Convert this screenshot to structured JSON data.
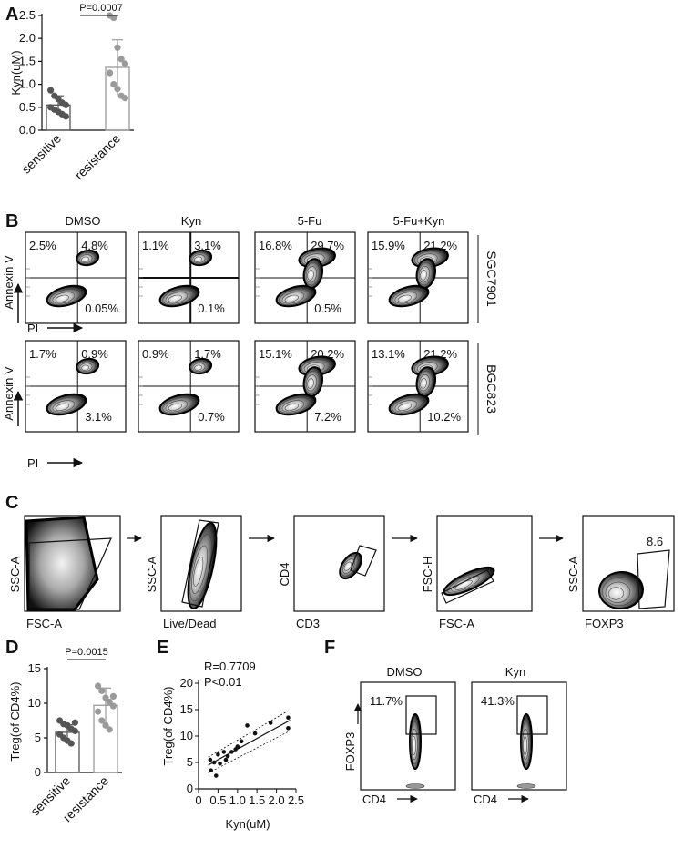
{
  "panel_labels": [
    "A",
    "B",
    "C",
    "D",
    "E",
    "F"
  ],
  "panelA": {
    "label": "A",
    "chart_data": {
      "type": "bar",
      "ylabel": "Kyn(uM)",
      "categories": [
        "sensitive",
        "resistance"
      ],
      "values": [
        0.55,
        1.37
      ],
      "errors": [
        0.2,
        0.6
      ],
      "points": [
        [
          0.87,
          0.75,
          0.68,
          0.6,
          0.55,
          0.5,
          0.45,
          0.4,
          0.35,
          0.3
        ],
        [
          2.5,
          2.45,
          1.8,
          1.55,
          1.45,
          1.25,
          1.0,
          0.9,
          0.75,
          0.7
        ]
      ],
      "ylim": [
        0,
        2.5
      ],
      "yticks": [
        "0.0",
        "0.5",
        "1.0",
        "1.5",
        "2.0",
        "2.5"
      ],
      "annotation": "P=0.0007",
      "colors": [
        "#555555",
        "#9a9a9a"
      ]
    }
  },
  "panelB": {
    "label": "B",
    "conditions": [
      "DMSO",
      "Kyn",
      "5-Fu",
      "5-Fu+Kyn"
    ],
    "rows": [
      {
        "cell_line": "SGC7901",
        "ylabel": "Annexin V",
        "xlabel": "PI",
        "ul": [
          "2.5%",
          "1.1%",
          "16.8%",
          "15.9%"
        ],
        "ur": [
          "4.8%",
          "3.1%",
          "29.7%",
          "21.2%"
        ],
        "lr": [
          "0.05%",
          "0.1%",
          "0.5%",
          ""
        ]
      },
      {
        "cell_line": "BGC823",
        "ylabel": "Annexin V",
        "xlabel": "PI",
        "ul": [
          "1.7%",
          "0.9%",
          "15.1%",
          "13.1%"
        ],
        "ur": [
          "0.9%",
          "1.7%",
          "20.2%",
          "21.2%"
        ],
        "lr": [
          "3.1%",
          "0.7%",
          "7.2%",
          "10.2%"
        ]
      }
    ]
  },
  "panelC": {
    "label": "C",
    "plots": [
      {
        "ylabel": "SSC-A",
        "xlabel": "FSC-A"
      },
      {
        "ylabel": "SSC-A",
        "xlabel": "Live/Dead"
      },
      {
        "ylabel": "CD4",
        "xlabel": "CD3"
      },
      {
        "ylabel": "FSC-H",
        "xlabel": "FSC-A"
      },
      {
        "ylabel": "SSC-A",
        "xlabel": "FOXP3",
        "gate_value": "8.6"
      }
    ]
  },
  "panelD": {
    "label": "D",
    "chart_data": {
      "type": "bar",
      "ylabel": "Treg(of CD4%)",
      "categories": [
        "sensitive",
        "resistance"
      ],
      "values": [
        5.8,
        9.7
      ],
      "errors": [
        1.1,
        2.5
      ],
      "points": [
        [
          7.5,
          7.0,
          6.8,
          6.3,
          6.0,
          5.5,
          5.0,
          4.6,
          4.2,
          7.2
        ],
        [
          12.5,
          11.8,
          10.8,
          10.2,
          9.6,
          8.8,
          7.5,
          6.8,
          6.2,
          11.0
        ]
      ],
      "ylim": [
        0,
        15
      ],
      "yticks": [
        "0",
        "5",
        "10",
        "15"
      ],
      "annotation": "P=0.0015",
      "colors": [
        "#555555",
        "#9a9a9a"
      ]
    }
  },
  "panelE": {
    "label": "E",
    "chart_data": {
      "type": "scatter",
      "xlabel": "Kyn(uM)",
      "ylabel": "Treg(of CD4%)",
      "xlim": [
        0,
        2.5
      ],
      "ylim": [
        0,
        20
      ],
      "xticks": [
        "0",
        "0.5",
        "1.0",
        "1.5",
        "2.0",
        "2.5"
      ],
      "yticks": [
        "0",
        "5",
        "10",
        "15",
        "20"
      ],
      "annotation_r": "R=0.7709",
      "annotation_p": "P<0.01",
      "points": [
        [
          0.3,
          5.5
        ],
        [
          0.32,
          3.5
        ],
        [
          0.4,
          5.0
        ],
        [
          0.45,
          2.5
        ],
        [
          0.5,
          6.5
        ],
        [
          0.55,
          4.8
        ],
        [
          0.65,
          7.0
        ],
        [
          0.7,
          5.5
        ],
        [
          0.75,
          6.2
        ],
        [
          0.85,
          7.0
        ],
        [
          0.95,
          7.5
        ],
        [
          1.0,
          8.0
        ],
        [
          1.1,
          9.0
        ],
        [
          1.25,
          12.0
        ],
        [
          1.45,
          10.5
        ],
        [
          1.85,
          12.5
        ],
        [
          2.3,
          13.5
        ],
        [
          2.3,
          11.5
        ]
      ],
      "fit": {
        "x0": 0.25,
        "y0": 4.5,
        "x1": 2.35,
        "y1": 13.0
      }
    }
  },
  "panelF": {
    "label": "F",
    "ylabel": "FOXP3",
    "xlabel": "CD4",
    "plots": [
      {
        "title": "DMSO",
        "gate_value": "11.7%"
      },
      {
        "title": "Kyn",
        "gate_value": "41.3%"
      }
    ]
  }
}
